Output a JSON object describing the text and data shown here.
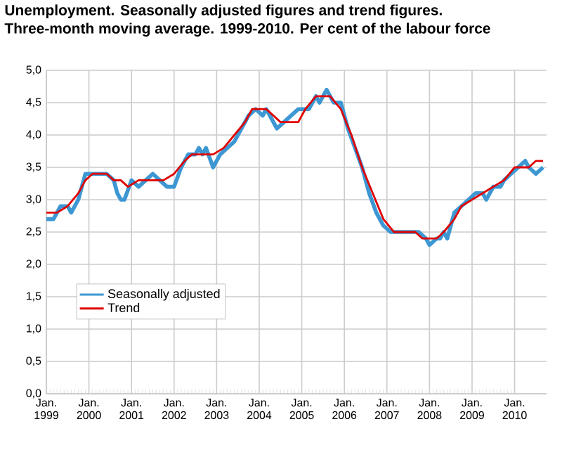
{
  "chart_data": {
    "type": "line",
    "title": "Unemployment. Seasonally adjusted figures and trend figures.",
    "subtitle": "Three-month moving average. 1999-2010. Per cent of the labour force",
    "xlim": [
      "1999-01",
      "2010-10"
    ],
    "xticks": [
      {
        "value": "1999-01",
        "label": "Jan. 1999"
      },
      {
        "value": "2000-01",
        "label": "Jan. 2000"
      },
      {
        "value": "2001-01",
        "label": "Jan. 2001"
      },
      {
        "value": "2002-01",
        "label": "Jan. 2002"
      },
      {
        "value": "2003-01",
        "label": "Jan. 2003"
      },
      {
        "value": "2004-01",
        "label": "Jan. 2004"
      },
      {
        "value": "2005-01",
        "label": "Jan. 2005"
      },
      {
        "value": "2006-01",
        "label": "Jan. 2006"
      },
      {
        "value": "2007-01",
        "label": "Jan. 2007"
      },
      {
        "value": "2008-01",
        "label": "Jan. 2008"
      },
      {
        "value": "2009-01",
        "label": "Jan. 2009"
      },
      {
        "value": "2010-01",
        "label": "Jan. 2010"
      }
    ],
    "ylim": [
      0,
      5
    ],
    "yticks": [
      {
        "value": 0,
        "label": "0,0"
      },
      {
        "value": 0.5,
        "label": "0,5"
      },
      {
        "value": 1,
        "label": "1,0"
      },
      {
        "value": 1.5,
        "label": "1,5"
      },
      {
        "value": 2,
        "label": "2,0"
      },
      {
        "value": 2.5,
        "label": "2,5"
      },
      {
        "value": 3,
        "label": "3,0"
      },
      {
        "value": 3.5,
        "label": "3,5"
      },
      {
        "value": 4,
        "label": "4,0"
      },
      {
        "value": 4.5,
        "label": "4,5"
      },
      {
        "value": 5,
        "label": "5,0"
      }
    ],
    "grid": true,
    "legend": "bottom left",
    "marker": "none",
    "line_style": "solid",
    "series": [
      {
        "name": "Seasonally adjusted",
        "color": "#3d97d3",
        "x": [
          "1999-01",
          "1999-03",
          "1999-05",
          "1999-07",
          "1999-08",
          "1999-10",
          "1999-12",
          "2000-02",
          "2000-06",
          "2000-08",
          "2000-09",
          "2000-10",
          "2000-11",
          "2001-01",
          "2001-03",
          "2001-05",
          "2001-07",
          "2001-09",
          "2001-11",
          "2002-01",
          "2002-03",
          "2002-05",
          "2002-07",
          "2002-08",
          "2002-09",
          "2002-10",
          "2002-12",
          "2003-02",
          "2003-04",
          "2003-06",
          "2003-08",
          "2003-10",
          "2003-12",
          "2004-02",
          "2004-03",
          "2004-05",
          "2004-06",
          "2004-08",
          "2004-10",
          "2004-12",
          "2005-03",
          "2005-05",
          "2005-06",
          "2005-08",
          "2005-10",
          "2005-12",
          "2006-02",
          "2006-04",
          "2006-06",
          "2006-08",
          "2006-10",
          "2006-12",
          "2007-02",
          "2007-04",
          "2007-06",
          "2007-08",
          "2007-10",
          "2007-12",
          "2008-01",
          "2008-03",
          "2008-04",
          "2008-05",
          "2008-06",
          "2008-08",
          "2008-10",
          "2008-12",
          "2009-02",
          "2009-04",
          "2009-05",
          "2009-07",
          "2009-09",
          "2009-10",
          "2009-12",
          "2010-02",
          "2010-04",
          "2010-05",
          "2010-07",
          "2010-09"
        ],
        "values": [
          2.7,
          2.7,
          2.9,
          2.9,
          2.8,
          3.0,
          3.4,
          3.4,
          3.4,
          3.3,
          3.1,
          3.0,
          3.0,
          3.3,
          3.2,
          3.3,
          3.4,
          3.3,
          3.2,
          3.2,
          3.5,
          3.7,
          3.7,
          3.8,
          3.7,
          3.8,
          3.5,
          3.7,
          3.8,
          3.9,
          4.1,
          4.3,
          4.4,
          4.3,
          4.4,
          4.2,
          4.1,
          4.2,
          4.3,
          4.4,
          4.4,
          4.6,
          4.5,
          4.7,
          4.5,
          4.5,
          4.1,
          3.8,
          3.5,
          3.1,
          2.8,
          2.6,
          2.5,
          2.5,
          2.5,
          2.5,
          2.5,
          2.4,
          2.3,
          2.4,
          2.4,
          2.5,
          2.4,
          2.8,
          2.9,
          3.0,
          3.1,
          3.1,
          3.0,
          3.2,
          3.2,
          3.3,
          3.4,
          3.5,
          3.6,
          3.5,
          3.4,
          3.5
        ]
      },
      {
        "name": "Trend",
        "color": "#e00000",
        "x": [
          "1999-01",
          "1999-04",
          "1999-07",
          "1999-10",
          "1999-12",
          "2000-02",
          "2000-06",
          "2000-08",
          "2000-10",
          "2000-12",
          "2001-03",
          "2001-10",
          "2002-01",
          "2002-04",
          "2002-06",
          "2002-12",
          "2003-03",
          "2003-06",
          "2003-09",
          "2003-11",
          "2004-03",
          "2004-05",
          "2004-07",
          "2004-12",
          "2005-02",
          "2005-05",
          "2005-09",
          "2005-12",
          "2006-03",
          "2006-06",
          "2006-09",
          "2006-12",
          "2007-03",
          "2007-09",
          "2007-11",
          "2008-03",
          "2008-05",
          "2008-08",
          "2008-10",
          "2009-01",
          "2009-04",
          "2009-07",
          "2009-10",
          "2010-01",
          "2010-05",
          "2010-07",
          "2010-09"
        ],
        "values": [
          2.8,
          2.8,
          2.9,
          3.1,
          3.3,
          3.4,
          3.4,
          3.3,
          3.3,
          3.2,
          3.3,
          3.3,
          3.4,
          3.6,
          3.7,
          3.7,
          3.8,
          4.0,
          4.2,
          4.4,
          4.4,
          4.3,
          4.2,
          4.2,
          4.4,
          4.6,
          4.6,
          4.4,
          4.0,
          3.5,
          3.1,
          2.7,
          2.5,
          2.5,
          2.4,
          2.4,
          2.5,
          2.7,
          2.9,
          3.0,
          3.1,
          3.2,
          3.3,
          3.5,
          3.5,
          3.6,
          3.6
        ]
      }
    ]
  }
}
